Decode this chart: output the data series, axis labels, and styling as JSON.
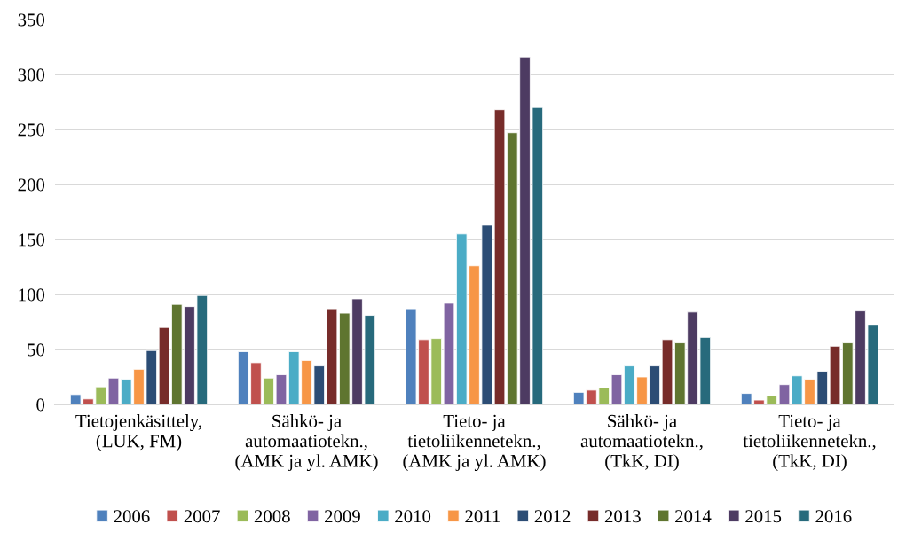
{
  "chart_data": {
    "type": "bar",
    "categories": [
      "Tietojenkäsittely,\n(LUK, FM)",
      "Sähkö- ja\nautomaatiotekn.,\n(AMK ja yl. AMK)",
      "Tieto- ja\ntietoliikennetekn.,\n(AMK ja yl. AMK)",
      "Sähkö- ja\nautomaatiotekn.,\n(TkK, DI)",
      "Tieto- ja\ntietoliikennetekn.,\n(TkK, DI)"
    ],
    "series": [
      {
        "name": "2006",
        "color": "#4f81bd",
        "values": [
          9,
          48,
          87,
          11,
          10
        ]
      },
      {
        "name": "2007",
        "color": "#c0504d",
        "values": [
          5,
          38,
          59,
          13,
          4
        ]
      },
      {
        "name": "2008",
        "color": "#9bbb59",
        "values": [
          16,
          24,
          60,
          15,
          8
        ]
      },
      {
        "name": "2009",
        "color": "#8064a2",
        "values": [
          24,
          27,
          92,
          27,
          18
        ]
      },
      {
        "name": "2010",
        "color": "#4bacc6",
        "values": [
          23,
          48,
          155,
          35,
          26
        ]
      },
      {
        "name": "2011",
        "color": "#f79646",
        "values": [
          32,
          40,
          126,
          25,
          23
        ]
      },
      {
        "name": "2012",
        "color": "#2c4d75",
        "values": [
          49,
          35,
          163,
          35,
          30
        ]
      },
      {
        "name": "2013",
        "color": "#772c2a",
        "values": [
          70,
          87,
          268,
          59,
          53
        ]
      },
      {
        "name": "2014",
        "color": "#5f7530",
        "values": [
          91,
          83,
          247,
          56,
          56
        ]
      },
      {
        "name": "2015",
        "color": "#4d3b62",
        "values": [
          89,
          96,
          316,
          84,
          85
        ]
      },
      {
        "name": "2016",
        "color": "#276a7c",
        "values": [
          99,
          81,
          270,
          61,
          72
        ]
      }
    ],
    "ylim": [
      0,
      350
    ],
    "yticks": [
      0,
      50,
      100,
      150,
      200,
      250,
      300,
      350
    ],
    "grid": "y",
    "legend": "bottom"
  }
}
